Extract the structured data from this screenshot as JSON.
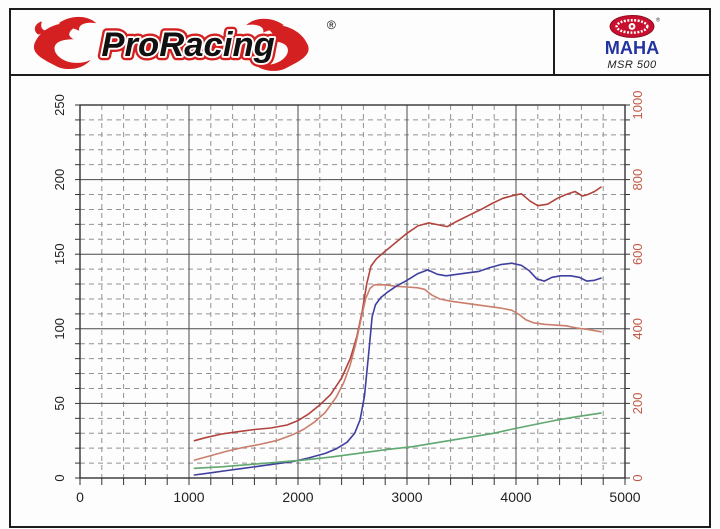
{
  "header": {
    "brand": "ProRacing",
    "brand_registered": "®",
    "maha_brand": "MAHA",
    "maha_registered": "®",
    "maha_model": "MSR 500"
  },
  "colors": {
    "brand_red": "#d42020",
    "maha_red": "#c8102e",
    "maha_blue": "#2333a0",
    "grid_major": "#4a4a4a",
    "grid_minor": "#929292",
    "plot_border": "#333333",
    "left_axis_text": "#222222",
    "right_axis_text": "#c25a48"
  },
  "chart_data": {
    "type": "line",
    "title": "",
    "xlabel": "",
    "ylabel": "",
    "grid": true,
    "legend": "none",
    "x_axis": {
      "min": 0,
      "max": 5000,
      "major_step": 1000,
      "minor_step": 200,
      "tick_labels": [
        "0",
        "1000",
        "2000",
        "3000",
        "4000",
        "5000"
      ]
    },
    "left_axis": {
      "min": 0,
      "max": 250,
      "major_step": 50,
      "minor_step": 10,
      "tick_labels": [
        "0",
        "50",
        "100",
        "150",
        "200",
        "250"
      ]
    },
    "right_axis": {
      "min": 0,
      "max": 1000,
      "major_step": 200,
      "tick_labels": [
        "0",
        "200",
        "400",
        "600",
        "800",
        "1000"
      ]
    },
    "series": [
      {
        "name": "red-curve-upper",
        "color": "#b2423c",
        "width": 1.6,
        "points": [
          [
            1050,
            25
          ],
          [
            1150,
            27
          ],
          [
            1300,
            29.5
          ],
          [
            1450,
            31
          ],
          [
            1600,
            32.5
          ],
          [
            1750,
            33.5
          ],
          [
            1900,
            35.5
          ],
          [
            2000,
            38.5
          ],
          [
            2100,
            43
          ],
          [
            2200,
            49
          ],
          [
            2300,
            56
          ],
          [
            2400,
            67
          ],
          [
            2480,
            80
          ],
          [
            2540,
            95
          ],
          [
            2590,
            112
          ],
          [
            2630,
            130
          ],
          [
            2670,
            142
          ],
          [
            2720,
            147
          ],
          [
            2800,
            152
          ],
          [
            2900,
            158
          ],
          [
            3000,
            164
          ],
          [
            3100,
            169
          ],
          [
            3200,
            171
          ],
          [
            3300,
            169.5
          ],
          [
            3370,
            168.5
          ],
          [
            3470,
            172.5
          ],
          [
            3580,
            176.5
          ],
          [
            3680,
            180
          ],
          [
            3780,
            184
          ],
          [
            3880,
            187.5
          ],
          [
            3980,
            189.5
          ],
          [
            4050,
            190.5
          ],
          [
            4130,
            185.5
          ],
          [
            4200,
            182.5
          ],
          [
            4290,
            183.5
          ],
          [
            4380,
            187.5
          ],
          [
            4460,
            190
          ],
          [
            4540,
            192
          ],
          [
            4610,
            189
          ],
          [
            4660,
            190
          ],
          [
            4720,
            192
          ],
          [
            4780,
            195
          ]
        ]
      },
      {
        "name": "red-curve-lower",
        "color": "#cb7e6c",
        "width": 1.6,
        "points": [
          [
            1050,
            12
          ],
          [
            1200,
            15
          ],
          [
            1350,
            18
          ],
          [
            1500,
            20.5
          ],
          [
            1650,
            22.5
          ],
          [
            1800,
            25
          ],
          [
            1950,
            29
          ],
          [
            2050,
            32.5
          ],
          [
            2150,
            37.5
          ],
          [
            2250,
            44
          ],
          [
            2350,
            54
          ],
          [
            2420,
            64
          ],
          [
            2480,
            76
          ],
          [
            2530,
            90
          ],
          [
            2580,
            107
          ],
          [
            2620,
            120
          ],
          [
            2660,
            127
          ],
          [
            2700,
            129.5
          ],
          [
            2800,
            129.5
          ],
          [
            2900,
            128.5
          ],
          [
            3000,
            128
          ],
          [
            3100,
            127.5
          ],
          [
            3160,
            126.5
          ],
          [
            3230,
            122.5
          ],
          [
            3300,
            120
          ],
          [
            3400,
            118.5
          ],
          [
            3550,
            117
          ],
          [
            3700,
            115.5
          ],
          [
            3850,
            114
          ],
          [
            3960,
            112.5
          ],
          [
            4030,
            109.5
          ],
          [
            4090,
            106
          ],
          [
            4160,
            104
          ],
          [
            4260,
            103
          ],
          [
            4360,
            102.5
          ],
          [
            4460,
            102
          ],
          [
            4560,
            100.5
          ],
          [
            4660,
            99.5
          ],
          [
            4780,
            98
          ]
        ]
      },
      {
        "name": "blue-curve",
        "color": "#3f3f9f",
        "width": 1.6,
        "points": [
          [
            1050,
            2
          ],
          [
            1200,
            3.5
          ],
          [
            1350,
            5
          ],
          [
            1500,
            6.5
          ],
          [
            1650,
            8
          ],
          [
            1800,
            9.5
          ],
          [
            1950,
            11
          ],
          [
            2100,
            13.5
          ],
          [
            2250,
            16.5
          ],
          [
            2350,
            19.5
          ],
          [
            2450,
            24
          ],
          [
            2520,
            30
          ],
          [
            2570,
            39
          ],
          [
            2610,
            55
          ],
          [
            2650,
            85
          ],
          [
            2680,
            108
          ],
          [
            2710,
            116
          ],
          [
            2760,
            121
          ],
          [
            2820,
            124.5
          ],
          [
            2900,
            128.5
          ],
          [
            3000,
            132.5
          ],
          [
            3100,
            137
          ],
          [
            3190,
            139.5
          ],
          [
            3280,
            136.5
          ],
          [
            3360,
            135.5
          ],
          [
            3460,
            136.5
          ],
          [
            3560,
            137.5
          ],
          [
            3660,
            138.5
          ],
          [
            3760,
            141
          ],
          [
            3860,
            143
          ],
          [
            3960,
            144
          ],
          [
            4050,
            142.5
          ],
          [
            4120,
            139
          ],
          [
            4190,
            133.5
          ],
          [
            4260,
            132
          ],
          [
            4330,
            134.5
          ],
          [
            4410,
            135.5
          ],
          [
            4500,
            135.5
          ],
          [
            4580,
            134.5
          ],
          [
            4650,
            132
          ],
          [
            4720,
            132.5
          ],
          [
            4780,
            134
          ]
        ]
      },
      {
        "name": "green-curve",
        "color": "#5fa870",
        "width": 1.6,
        "points": [
          [
            1050,
            6.5
          ],
          [
            1300,
            7.5
          ],
          [
            1550,
            9
          ],
          [
            1800,
            10.5
          ],
          [
            2050,
            12
          ],
          [
            2300,
            14
          ],
          [
            2550,
            16.5
          ],
          [
            2800,
            19
          ],
          [
            3050,
            21
          ],
          [
            3300,
            24
          ],
          [
            3550,
            27
          ],
          [
            3800,
            30
          ],
          [
            3950,
            32.5
          ],
          [
            4150,
            35.5
          ],
          [
            4350,
            38.5
          ],
          [
            4550,
            41
          ],
          [
            4780,
            43.5
          ]
        ]
      }
    ]
  }
}
